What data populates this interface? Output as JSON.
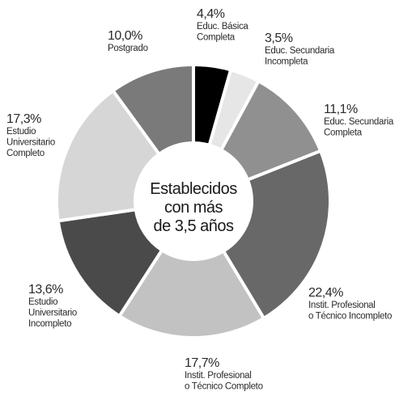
{
  "chart_data": {
    "type": "pie",
    "center_text": [
      "Establecidos",
      "con más",
      "de 3,5 años"
    ],
    "slices": [
      {
        "value": 4.4,
        "pct_label": "4,4%",
        "label_lines": [
          "Educ. Básica",
          "Completa"
        ],
        "color": "#000000"
      },
      {
        "value": 3.5,
        "pct_label": "3,5%",
        "label_lines": [
          "Educ. Secundaria",
          "Incompleta"
        ],
        "color": "#e6e6e6"
      },
      {
        "value": 11.1,
        "pct_label": "11,1%",
        "label_lines": [
          "Educ. Secundaria",
          "Completa"
        ],
        "color": "#909090"
      },
      {
        "value": 22.4,
        "pct_label": "22,4%",
        "label_lines": [
          "Instit. Profesional",
          "o Técnico Incompleto"
        ],
        "color": "#686868"
      },
      {
        "value": 17.7,
        "pct_label": "17,7%",
        "label_lines": [
          "Instit. Profesional",
          "o Técnico Completo"
        ],
        "color": "#c2c2c2"
      },
      {
        "value": 13.6,
        "pct_label": "13,6%",
        "label_lines": [
          "Estudio",
          "Universitario",
          "Incompleto"
        ],
        "color": "#4a4a4a"
      },
      {
        "value": 17.3,
        "pct_label": "17,3%",
        "label_lines": [
          "Estudio",
          "Universitario",
          "Completo"
        ],
        "color": "#d6d6d6"
      },
      {
        "value": 10.0,
        "pct_label": "10,0%",
        "label_lines": [
          "Postgrado"
        ],
        "color": "#7a7a7a"
      }
    ]
  }
}
